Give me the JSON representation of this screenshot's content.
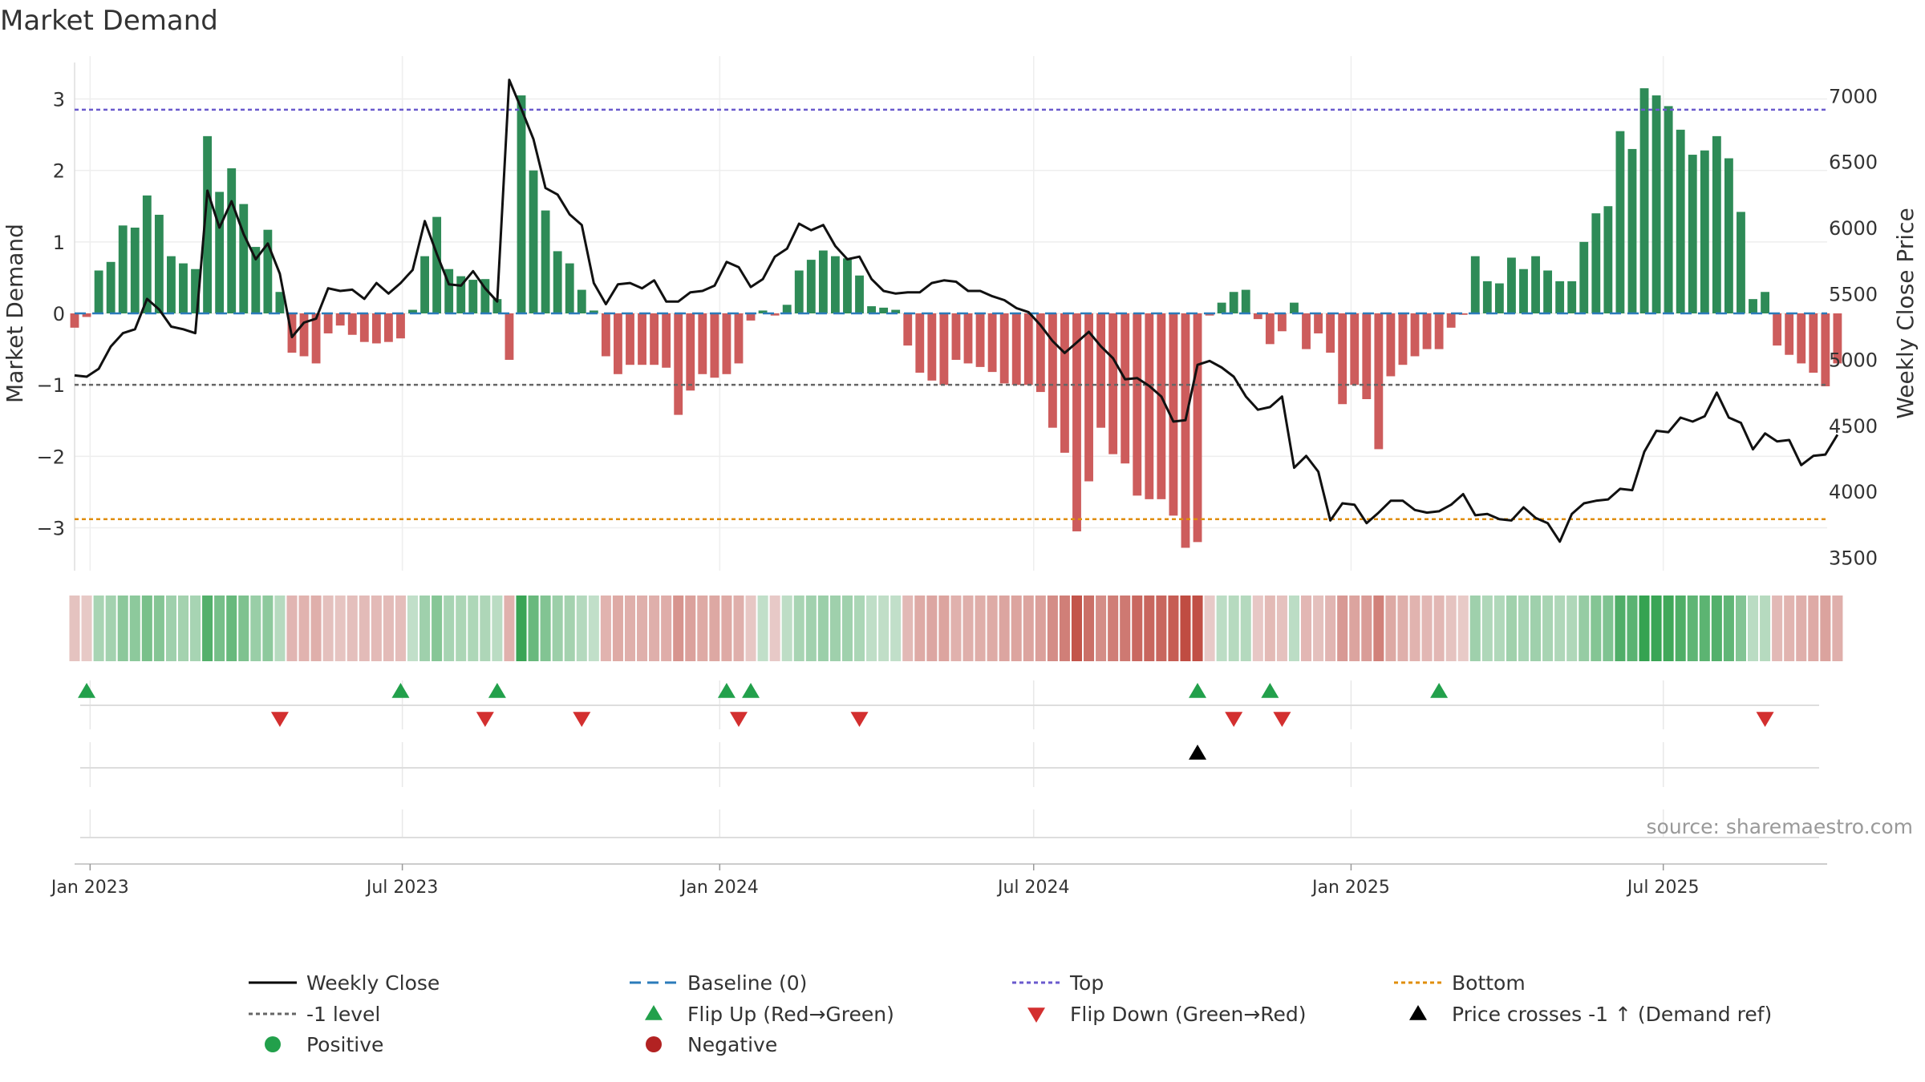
{
  "chart_data": {
    "type": "bar+line",
    "title": "Market Demand",
    "left_ylabel": "Market Demand",
    "right_ylabel": "Weekly Close Price",
    "left_ylim": [
      -3.6,
      3.6
    ],
    "right_ylim": [
      3400,
      7300
    ],
    "left_ticks": [
      3,
      2,
      1,
      0,
      -1,
      -2,
      -3
    ],
    "left_tick_labels": [
      "3",
      "2",
      "1",
      "0",
      "−1",
      "−2",
      "−3"
    ],
    "right_ticks": [
      7000,
      6500,
      6000,
      5500,
      5000,
      4500,
      4000,
      3500
    ],
    "right_tick_labels": [
      "7000",
      "6500",
      "6000",
      "5500",
      "5000",
      "4500",
      "4000",
      "3500"
    ],
    "x_start_date": "2022-12-23",
    "x_end_date": "2025-10-04",
    "first_week": "2022-12-23",
    "week_days": 7,
    "x_ticks": [
      {
        "date": "2023-01-01",
        "label": "Jan 2023"
      },
      {
        "date": "2023-07-01",
        "label": "Jul 2023"
      },
      {
        "date": "2024-01-01",
        "label": "Jan 2024"
      },
      {
        "date": "2024-07-01",
        "label": "Jul 2024"
      },
      {
        "date": "2025-01-01",
        "label": "Jan 2025"
      },
      {
        "date": "2025-07-01",
        "label": "Jul 2025"
      }
    ],
    "demand_values": [
      -0.2,
      -0.05,
      0.6,
      0.72,
      1.23,
      1.2,
      1.65,
      1.38,
      0.8,
      0.7,
      0.62,
      2.48,
      1.7,
      2.03,
      1.53,
      0.93,
      1.17,
      0.3,
      -0.55,
      -0.6,
      -0.7,
      -0.28,
      -0.17,
      -0.3,
      -0.4,
      -0.42,
      -0.4,
      -0.35,
      0.05,
      0.8,
      1.35,
      0.62,
      0.52,
      0.47,
      0.48,
      0.2,
      -0.65,
      3.05,
      2.0,
      1.44,
      0.87,
      0.7,
      0.33,
      0.04,
      -0.6,
      -0.85,
      -0.72,
      -0.72,
      -0.72,
      -0.76,
      -1.42,
      -1.08,
      -0.85,
      -0.9,
      -0.85,
      -0.7,
      -0.1,
      0.04,
      -0.03,
      0.12,
      0.6,
      0.75,
      0.88,
      0.8,
      0.77,
      0.53,
      0.1,
      0.08,
      0.05,
      -0.45,
      -0.83,
      -0.94,
      -1.0,
      -0.65,
      -0.7,
      -0.75,
      -0.82,
      -0.98,
      -1.0,
      -1.0,
      -1.1,
      -1.6,
      -1.95,
      -3.05,
      -2.35,
      -1.6,
      -1.97,
      -2.1,
      -2.55,
      -2.6,
      -2.6,
      -2.83,
      -3.28,
      -3.2,
      -0.03,
      0.15,
      0.3,
      0.33,
      -0.08,
      -0.43,
      -0.25,
      0.15,
      -0.5,
      -0.28,
      -0.55,
      -1.27,
      -1.0,
      -1.2,
      -1.9,
      -0.88,
      -0.72,
      -0.6,
      -0.5,
      -0.5,
      -0.2,
      -0.02,
      0.8,
      0.45,
      0.42,
      0.78,
      0.62,
      0.8,
      0.6,
      0.45,
      0.45,
      1.0,
      1.4,
      1.5,
      2.55,
      2.3,
      3.15,
      3.05,
      2.9,
      2.57,
      2.22,
      2.28,
      2.48,
      2.17,
      1.42,
      0.2,
      0.3,
      -0.45,
      -0.58,
      -0.7,
      -0.83,
      -1.02,
      -0.7
    ],
    "close_values": [
      4880,
      4870,
      4930,
      5100,
      5200,
      5230,
      5460,
      5380,
      5250,
      5230,
      5200,
      6280,
      6000,
      6200,
      5950,
      5760,
      5880,
      5650,
      5170,
      5280,
      5310,
      5540,
      5520,
      5530,
      5460,
      5580,
      5500,
      5580,
      5680,
      6050,
      5800,
      5570,
      5560,
      5670,
      5540,
      5440,
      7120,
      6900,
      6670,
      6300,
      6250,
      6100,
      6020,
      5580,
      5420,
      5570,
      5580,
      5540,
      5600,
      5440,
      5440,
      5510,
      5520,
      5560,
      5740,
      5700,
      5550,
      5610,
      5780,
      5840,
      6030,
      5980,
      6020,
      5860,
      5760,
      5780,
      5610,
      5520,
      5500,
      5510,
      5510,
      5580,
      5600,
      5590,
      5520,
      5520,
      5480,
      5450,
      5390,
      5360,
      5260,
      5140,
      5050,
      5130,
      5210,
      5100,
      5010,
      4850,
      4860,
      4800,
      4720,
      4530,
      4540,
      4960,
      4990,
      4940,
      4870,
      4720,
      4620,
      4640,
      4720,
      4180,
      4270,
      4150,
      3780,
      3910,
      3900,
      3760,
      3840,
      3930,
      3930,
      3860,
      3840,
      3850,
      3900,
      3980,
      3820,
      3830,
      3790,
      3780,
      3880,
      3800,
      3760,
      3620,
      3830,
      3910,
      3930,
      3940,
      4020,
      4010,
      4300,
      4460,
      4450,
      4560,
      4530,
      4570,
      4750,
      4560,
      4520,
      4320,
      4440,
      4380,
      4390,
      4200,
      4270,
      4280,
      4430
    ],
    "reference_lines": {
      "top": 2.85,
      "baseline": 0,
      "minus_one": -1,
      "bottom": -2.88
    },
    "flip_up_weeks": [
      1,
      27,
      35,
      54,
      56,
      93,
      99,
      113
    ],
    "flip_down_weeks": [
      17,
      34,
      42,
      55,
      65,
      96,
      100,
      140
    ],
    "price_cross_weeks": [
      93
    ],
    "annotation": "source: sharemaestro.com",
    "legend": [
      {
        "label": "Weekly Close",
        "kind": "line"
      },
      {
        "label": "Baseline (0)",
        "kind": "dash"
      },
      {
        "label": "Top",
        "kind": "dot-blue"
      },
      {
        "label": "Bottom",
        "kind": "dot-orange"
      },
      {
        "label": "-1 level",
        "kind": "dot-gray"
      },
      {
        "label": "Flip Up (Red→Green)",
        "kind": "tri-up-green"
      },
      {
        "label": "Flip Down (Green→Red)",
        "kind": "tri-down-red"
      },
      {
        "label": "Price crosses -1 ↑ (Demand ref)",
        "kind": "tri-up-black"
      },
      {
        "label": "Positive",
        "kind": "dot-green"
      },
      {
        "label": "Negative",
        "kind": "dot-red"
      }
    ],
    "legend_position": "bottom"
  },
  "colors": {
    "positive": "#2e8b57",
    "negative": "#cd5c5c",
    "line": "#111111",
    "top": "#6a5acd",
    "bottom": "#e08e0b",
    "minus_one": "#666666",
    "baseline": "#2b7bba",
    "flip_up": "#22a04b",
    "flip_down": "#d32f2f",
    "cross": "#000000",
    "positive_dot": "#22a04b",
    "negative_dot": "#b22222"
  }
}
